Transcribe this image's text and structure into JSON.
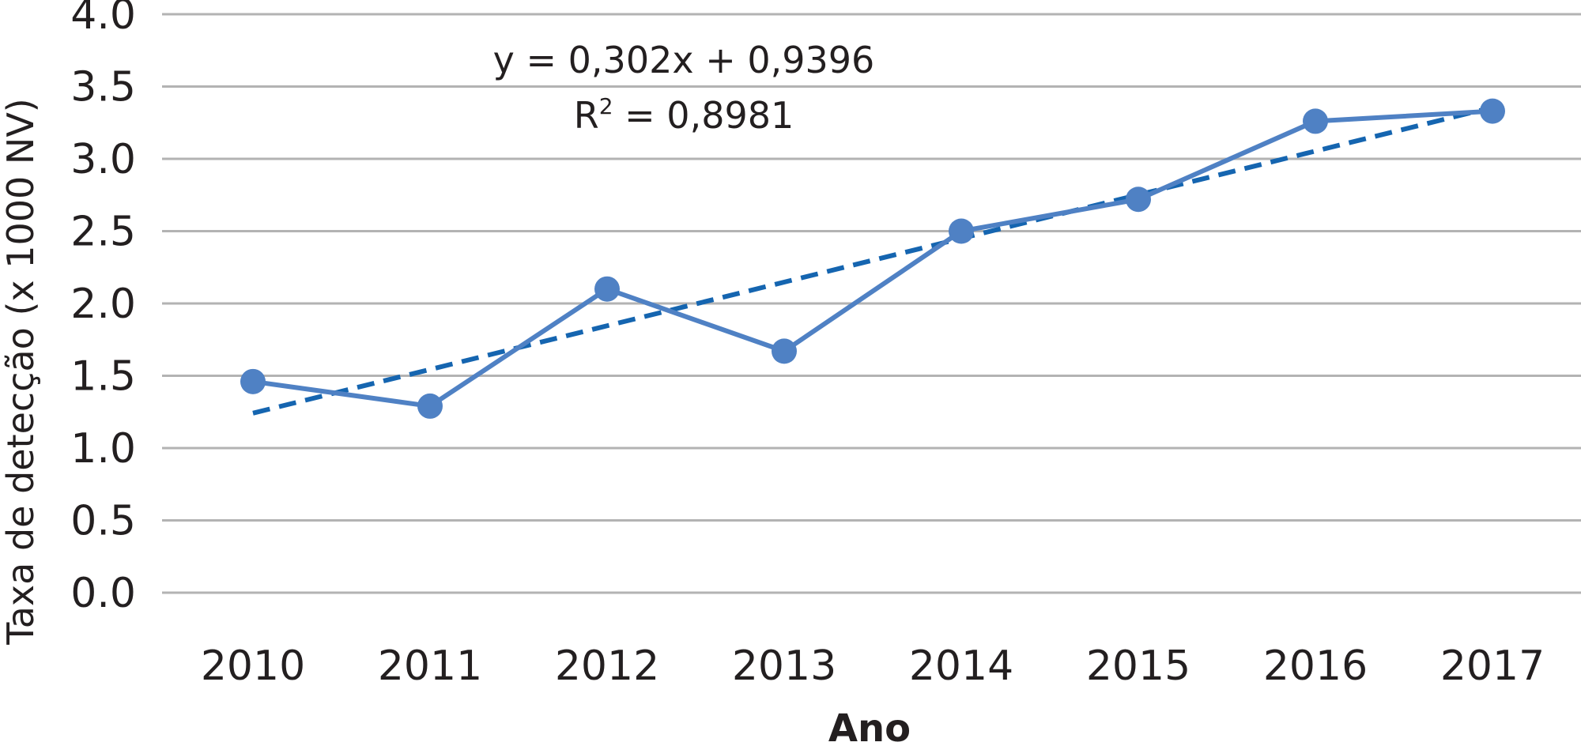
{
  "chart_data": {
    "type": "line",
    "xlabel": "Ano",
    "ylabel": "Taxa de detecção (x 1000 NV)",
    "categories": [
      "2010",
      "2011",
      "2012",
      "2013",
      "2014",
      "2015",
      "2016",
      "2017"
    ],
    "series": [
      {
        "values": [
          1.46,
          1.29,
          2.1,
          1.67,
          2.5,
          2.72,
          3.26,
          3.33
        ]
      }
    ],
    "trendline": {
      "type": "linear",
      "slope": 0.302,
      "intercept": 0.9396,
      "equation": "y = 0,302x + 0,9396",
      "r2_label": "R",
      "r2_sup": "2",
      "r2_value": " = 0,8981"
    },
    "ylim": [
      0,
      4
    ],
    "yticks": [
      "0.0",
      "0.5",
      "1.0",
      "1.5",
      "2.0",
      "2.5",
      "3.0",
      "3.5",
      "4.0"
    ],
    "ytick_values": [
      0,
      0.5,
      1,
      1.5,
      2,
      2.5,
      3,
      3.5,
      4
    ],
    "grid": true,
    "colors": {
      "series": "#4f81c4",
      "trend": "#1565b0",
      "grid": "#b3b3b3",
      "text": "#231f20"
    }
  }
}
